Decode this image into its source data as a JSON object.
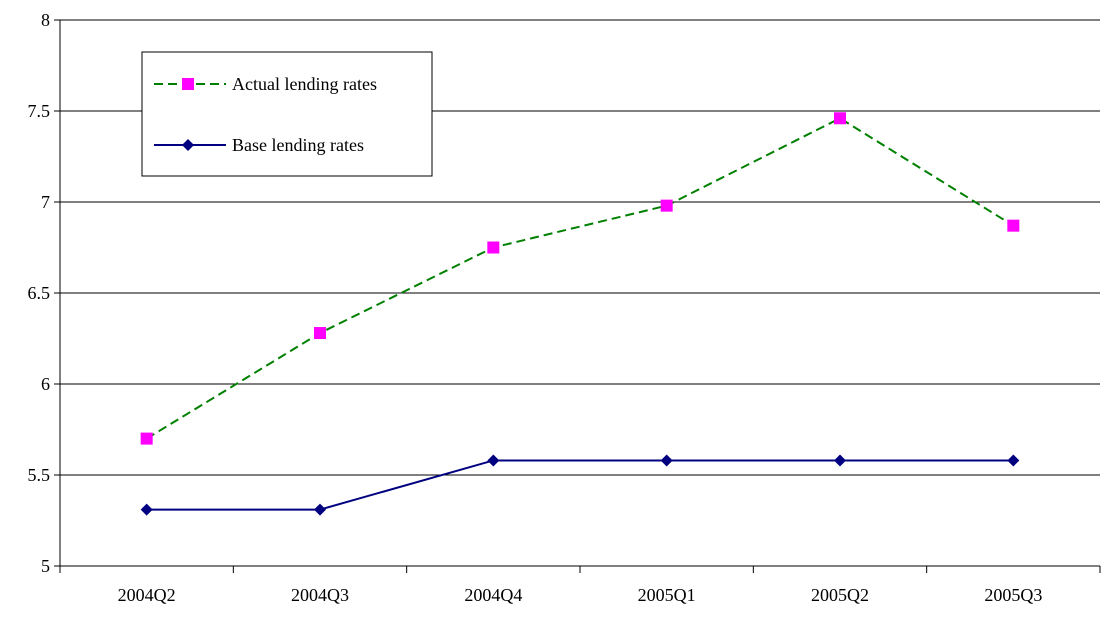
{
  "chart_data": {
    "type": "line",
    "title": "",
    "xlabel": "",
    "ylabel": "",
    "categories": [
      "2004Q2",
      "2004Q3",
      "2004Q4",
      "2005Q1",
      "2005Q2",
      "2005Q3"
    ],
    "ylim": [
      5,
      8
    ],
    "yticks": [
      "5",
      "5.5",
      "6",
      "6.5",
      "7",
      "7.5",
      "8"
    ],
    "grid": "horizontal",
    "legend_position": "top-left",
    "series": [
      {
        "name": "Actual lending rates",
        "values": [
          5.7,
          6.28,
          6.75,
          6.98,
          7.46,
          6.87
        ],
        "color": "#008000",
        "marker_color": "#ff00ff",
        "line_style": "dashed",
        "marker": "square"
      },
      {
        "name": "Base lending rates",
        "values": [
          5.31,
          5.31,
          5.58,
          5.58,
          5.58,
          5.58
        ],
        "color": "#000080",
        "marker_color": "#000080",
        "line_style": "solid",
        "marker": "diamond"
      }
    ]
  }
}
